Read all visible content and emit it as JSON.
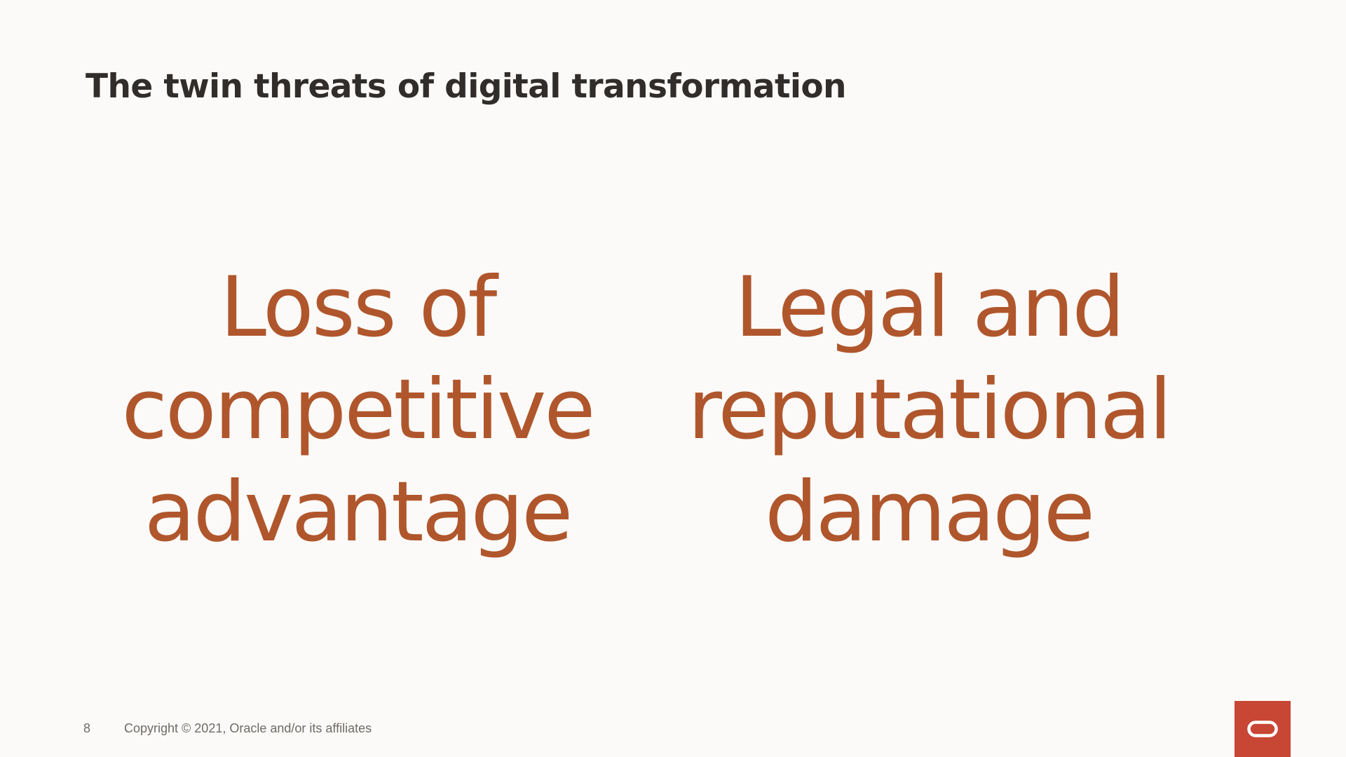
{
  "slide": {
    "title": "The twin threats of digital transformation",
    "threats": [
      {
        "lines": [
          "Loss of",
          "competitive",
          "advantage"
        ]
      },
      {
        "lines": [
          "Legal and",
          "reputational",
          "damage"
        ]
      }
    ],
    "page_number": "8",
    "copyright": "Copyright © 2021, Oracle and/or its affiliates"
  },
  "colors": {
    "background": "#fbfaf8",
    "title": "#312d2a",
    "accent_text": "#b0562c",
    "logo_background": "#c74634",
    "footer_text": "#6f6a66"
  },
  "icons": {
    "logo": "oracle-logo-icon"
  }
}
